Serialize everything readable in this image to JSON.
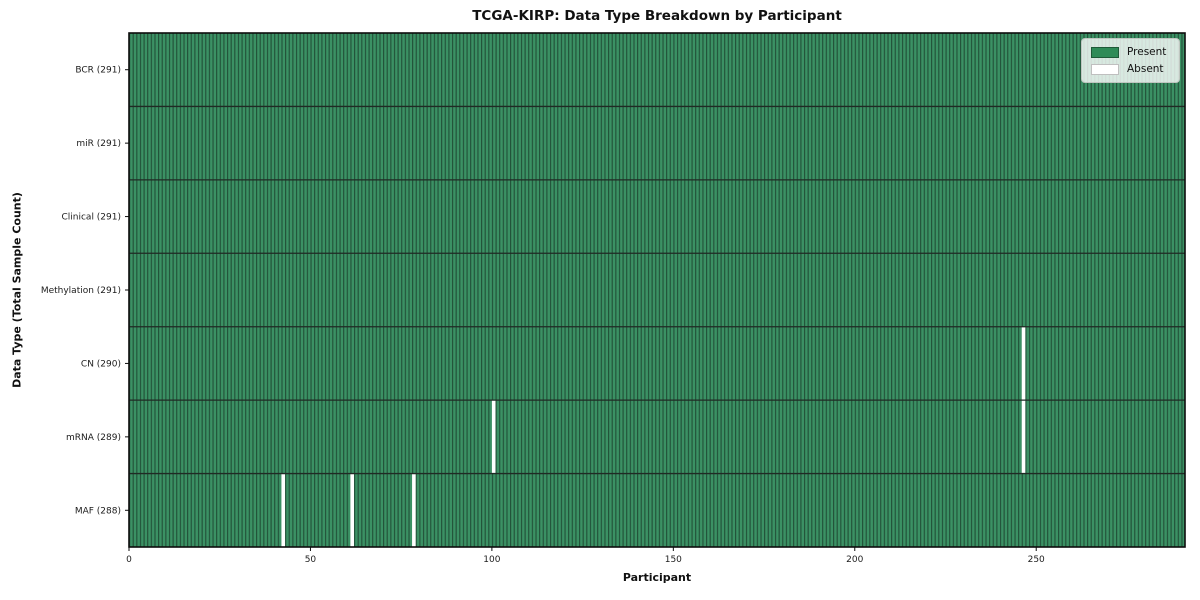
{
  "title": "TCGA-KIRP: Data Type Breakdown by Participant",
  "legend": {
    "present_label": "Present",
    "absent_label": "Absent"
  },
  "colors": {
    "present": "#2e8b57",
    "present_body": "#3b9164",
    "present_edge": "#225239",
    "absent": "#ffffff",
    "row_line": "#202a24",
    "spine": "#0d0d0d",
    "text": "#1c1c1c"
  },
  "chart_data": {
    "type": "heatmap",
    "title": "TCGA-KIRP: Data Type Breakdown by Participant",
    "xlabel": "Participant",
    "ylabel": "Data Type (Total Sample Count)",
    "n_participants": 291,
    "x_ticks": [
      0,
      50,
      100,
      150,
      200,
      250
    ],
    "xlim": [
      0,
      291
    ],
    "grid": false,
    "legend_entries": [
      "Present",
      "Absent"
    ],
    "legend_position": "upper right",
    "rows": [
      {
        "name": "BCR",
        "label": "BCR (291)",
        "total": 291,
        "absent_participants": []
      },
      {
        "name": "miR",
        "label": "miR (291)",
        "total": 291,
        "absent_participants": []
      },
      {
        "name": "Clinical",
        "label": "Clinical (291)",
        "total": 291,
        "absent_participants": []
      },
      {
        "name": "Methylation",
        "label": "Methylation (291)",
        "total": 291,
        "absent_participants": []
      },
      {
        "name": "CN",
        "label": "CN (290)",
        "total": 290,
        "absent_participants": [
          246
        ]
      },
      {
        "name": "mRNA",
        "label": "mRNA (289)",
        "total": 289,
        "absent_participants": [
          100,
          246
        ]
      },
      {
        "name": "MAF",
        "label": "MAF (288)",
        "total": 288,
        "absent_participants": [
          42,
          61,
          78
        ]
      }
    ]
  }
}
